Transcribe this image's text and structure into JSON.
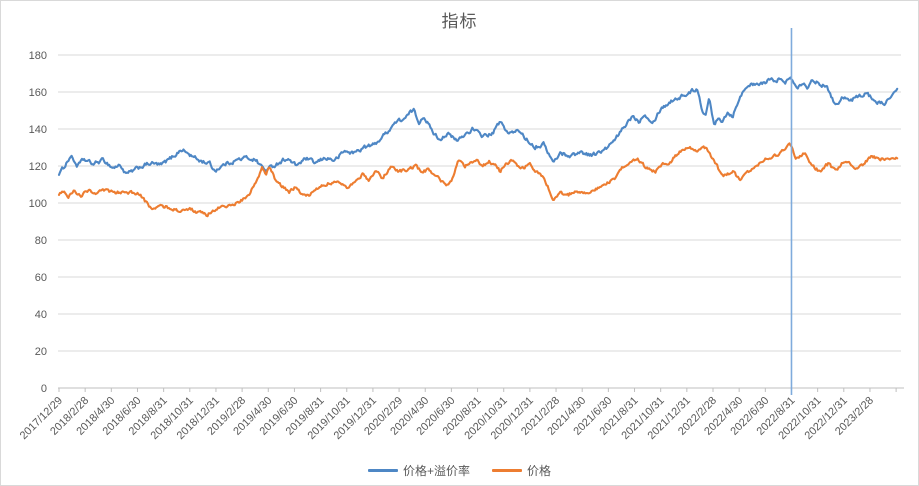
{
  "chart_title": "指标",
  "chart_data": {
    "type": "line",
    "title": "指标",
    "xlabel": "",
    "ylabel": "",
    "grid": true,
    "legend_position": "bottom",
    "ylim": [
      0,
      195
    ],
    "y_ticks": [
      0,
      20,
      40,
      60,
      80,
      100,
      120,
      140,
      160,
      180
    ],
    "x_tick_interval_months": 2,
    "x_months_range": [
      0,
      64.1
    ],
    "x_tick_labels": [
      "2017/12/29",
      "2018/2/28",
      "2018/4/30",
      "2018/6/30",
      "2018/8/31",
      "2018/10/31",
      "2018/12/31",
      "2019/2/28",
      "2019/4/30",
      "2019/6/30",
      "2019/8/31",
      "2019/10/31",
      "2019/12/31",
      "2020/2/29",
      "2020/4/30",
      "2020/6/30",
      "2020/8/31",
      "2020/10/31",
      "2020/12/31",
      "2021/2/28",
      "2021/4/30",
      "2021/6/30",
      "2021/8/31",
      "2021/10/31",
      "2021/12/31",
      "2022/2/28",
      "2022/4/30",
      "2022/6/30",
      "2022/8/31",
      "2022/10/31",
      "2022/12/31",
      "2023/2/28"
    ],
    "marker_line": {
      "at_x_label": "2022/8/31",
      "month": 56,
      "color": "#7fabdc"
    },
    "colors": {
      "grid": "#d9d9d9",
      "axis": "#bfbfbf",
      "tick_label": "#595959",
      "title": "#595959"
    },
    "series": [
      {
        "name": "价格+溢价率",
        "color": "#4e87c5",
        "anchors": [
          [
            0,
            116
          ],
          [
            0.2,
            117.5
          ],
          [
            0.9,
            125.5
          ],
          [
            1.4,
            120
          ],
          [
            1.9,
            123.5
          ],
          [
            2.6,
            121
          ],
          [
            3.4,
            123.3
          ],
          [
            4.1,
            119
          ],
          [
            4.7,
            120.5
          ],
          [
            5.1,
            115.5
          ],
          [
            5.6,
            117
          ],
          [
            6.2,
            119.5
          ],
          [
            7,
            121.5
          ],
          [
            7.8,
            120.5
          ],
          [
            8.6,
            124.5
          ],
          [
            9.4,
            129
          ],
          [
            10.1,
            125.5
          ],
          [
            10.8,
            122.8
          ],
          [
            11.5,
            121.5
          ],
          [
            11.9,
            117.5
          ],
          [
            12.7,
            121
          ],
          [
            13.5,
            123
          ],
          [
            14.3,
            124.5
          ],
          [
            15,
            123.5
          ],
          [
            15.8,
            117.5
          ],
          [
            16.6,
            121
          ],
          [
            17.4,
            124.2
          ],
          [
            18.1,
            120.3
          ],
          [
            18.9,
            124
          ],
          [
            19.6,
            121.5
          ],
          [
            20.4,
            124.5
          ],
          [
            21.1,
            123
          ],
          [
            21.8,
            128
          ],
          [
            22.5,
            127
          ],
          [
            23.3,
            130
          ],
          [
            24.1,
            131.5
          ],
          [
            24.9,
            137
          ],
          [
            25.7,
            143.5
          ],
          [
            26.5,
            146
          ],
          [
            27.1,
            150.5
          ],
          [
            27.5,
            143.5
          ],
          [
            27.9,
            147.3
          ],
          [
            28.5,
            139
          ],
          [
            29.1,
            134.5
          ],
          [
            29.7,
            137.5
          ],
          [
            30.4,
            133.5
          ],
          [
            31.1,
            137.3
          ],
          [
            31.6,
            140
          ],
          [
            32.3,
            136.5
          ],
          [
            33.1,
            137
          ],
          [
            33.7,
            143.8
          ],
          [
            34.4,
            137.5
          ],
          [
            35.2,
            139
          ],
          [
            35.8,
            134
          ],
          [
            36.4,
            130.5
          ],
          [
            37.1,
            131.8
          ],
          [
            37.8,
            121.5
          ],
          [
            38.3,
            127
          ],
          [
            39.1,
            125.5
          ],
          [
            39.9,
            127.5
          ],
          [
            40.7,
            126
          ],
          [
            41.6,
            128
          ],
          [
            42.4,
            133
          ],
          [
            43.4,
            143
          ],
          [
            43.9,
            147.5
          ],
          [
            44.3,
            144
          ],
          [
            44.8,
            148.5
          ],
          [
            45.4,
            143.5
          ],
          [
            46,
            151
          ],
          [
            47,
            156
          ],
          [
            47.9,
            158.5
          ],
          [
            48.8,
            162
          ],
          [
            49.2,
            150
          ],
          [
            49.4,
            147
          ],
          [
            49.7,
            156
          ],
          [
            50.1,
            142
          ],
          [
            50.4,
            147
          ],
          [
            50.7,
            144.5
          ],
          [
            51.1,
            149
          ],
          [
            51.5,
            147
          ],
          [
            51.9,
            155
          ],
          [
            52.3,
            160
          ],
          [
            52.6,
            164
          ],
          [
            53.4,
            163.5
          ],
          [
            54.2,
            166
          ],
          [
            55.1,
            167
          ],
          [
            55.5,
            164.5
          ],
          [
            55.9,
            168.5
          ],
          [
            56.5,
            163
          ],
          [
            56.9,
            165.5
          ],
          [
            57.2,
            163
          ],
          [
            57.6,
            166
          ],
          [
            58,
            165.5
          ],
          [
            58.4,
            164
          ],
          [
            58.9,
            160.5
          ],
          [
            59.4,
            152.5
          ],
          [
            59.9,
            158
          ],
          [
            60.5,
            155
          ],
          [
            60.9,
            157
          ],
          [
            61.7,
            159.5
          ],
          [
            62.1,
            157
          ],
          [
            62.8,
            153.5
          ],
          [
            63.2,
            154.5
          ],
          [
            63.7,
            158
          ],
          [
            64.1,
            160.8
          ]
        ]
      },
      {
        "name": "价格",
        "color": "#ed7d31",
        "anchors": [
          [
            0,
            105
          ],
          [
            0.3,
            107
          ],
          [
            0.7,
            103.5
          ],
          [
            1.2,
            106.5
          ],
          [
            1.7,
            104
          ],
          [
            2.2,
            106.8
          ],
          [
            2.9,
            105.5
          ],
          [
            3.6,
            106.8
          ],
          [
            4.3,
            105.2
          ],
          [
            5,
            106.5
          ],
          [
            5.7,
            105.2
          ],
          [
            6.2,
            104.5
          ],
          [
            6.6,
            100.5
          ],
          [
            7.1,
            96.8
          ],
          [
            7.8,
            98.4
          ],
          [
            8.6,
            97.2
          ],
          [
            9.4,
            95.5
          ],
          [
            10,
            96.8
          ],
          [
            10.9,
            94.3
          ],
          [
            11.3,
            93.5
          ],
          [
            12.2,
            97.3
          ],
          [
            13,
            98.5
          ],
          [
            13.9,
            101
          ],
          [
            14.5,
            104
          ],
          [
            15,
            110.5
          ],
          [
            15.3,
            115.5
          ],
          [
            15.5,
            119.8
          ],
          [
            15.8,
            115.5
          ],
          [
            16.1,
            119
          ],
          [
            16.5,
            113
          ],
          [
            17,
            109
          ],
          [
            17.6,
            106.3
          ],
          [
            18,
            108
          ],
          [
            18.6,
            104.8
          ],
          [
            19.1,
            103.5
          ],
          [
            19.6,
            108
          ],
          [
            20.3,
            110.3
          ],
          [
            21,
            110.8
          ],
          [
            21.6,
            110.5
          ],
          [
            22,
            108.3
          ],
          [
            22.6,
            112
          ],
          [
            23.3,
            115.8
          ],
          [
            23.7,
            112.3
          ],
          [
            24.2,
            117.8
          ],
          [
            24.7,
            113.2
          ],
          [
            25.4,
            119.5
          ],
          [
            26,
            117.3
          ],
          [
            26.6,
            117.8
          ],
          [
            27.3,
            119.8
          ],
          [
            27.7,
            117.2
          ],
          [
            28.3,
            117.8
          ],
          [
            29,
            113.2
          ],
          [
            29.6,
            109.3
          ],
          [
            30,
            112
          ],
          [
            30.6,
            123.7
          ],
          [
            31,
            119.5
          ],
          [
            31.4,
            122
          ],
          [
            31.9,
            123.5
          ],
          [
            32.4,
            119.5
          ],
          [
            32.9,
            122.5
          ],
          [
            33.3,
            120.8
          ],
          [
            33.7,
            117.2
          ],
          [
            34.2,
            121.3
          ],
          [
            34.7,
            123.2
          ],
          [
            35.3,
            118.3
          ],
          [
            36,
            121
          ],
          [
            36.4,
            117.5
          ],
          [
            37,
            114
          ],
          [
            37.4,
            108.5
          ],
          [
            37.7,
            101.5
          ],
          [
            38.3,
            105.5
          ],
          [
            38.9,
            104.3
          ],
          [
            39.6,
            106.8
          ],
          [
            40.3,
            105.3
          ],
          [
            41,
            107.8
          ],
          [
            41.8,
            110
          ],
          [
            42.6,
            113.5
          ],
          [
            43.1,
            119
          ],
          [
            44.2,
            123.5
          ],
          [
            45,
            118.6
          ],
          [
            45.6,
            117.3
          ],
          [
            46.1,
            121
          ],
          [
            46.7,
            121.5
          ],
          [
            47.4,
            127.5
          ],
          [
            48.2,
            130.5
          ],
          [
            48.8,
            128
          ],
          [
            49.4,
            130
          ],
          [
            50,
            124
          ],
          [
            50.5,
            117.3
          ],
          [
            51,
            114.6
          ],
          [
            51.5,
            117
          ],
          [
            52.1,
            111.8
          ],
          [
            52.8,
            117
          ],
          [
            53.8,
            122.7
          ],
          [
            54.6,
            125
          ],
          [
            55.3,
            128
          ],
          [
            55.9,
            131.8
          ],
          [
            56.3,
            124
          ],
          [
            57,
            127
          ],
          [
            57.5,
            121
          ],
          [
            58.2,
            116.8
          ],
          [
            58.8,
            121
          ],
          [
            59.4,
            117.3
          ],
          [
            59.9,
            122.5
          ],
          [
            60.5,
            121
          ],
          [
            60.9,
            117.5
          ],
          [
            61.5,
            121
          ],
          [
            62,
            125
          ],
          [
            62.8,
            124
          ],
          [
            63.5,
            122.7
          ],
          [
            64.1,
            124.3
          ]
        ]
      }
    ]
  },
  "legend": {
    "items": [
      {
        "label": "价格+溢价率"
      },
      {
        "label": "价格"
      }
    ]
  }
}
